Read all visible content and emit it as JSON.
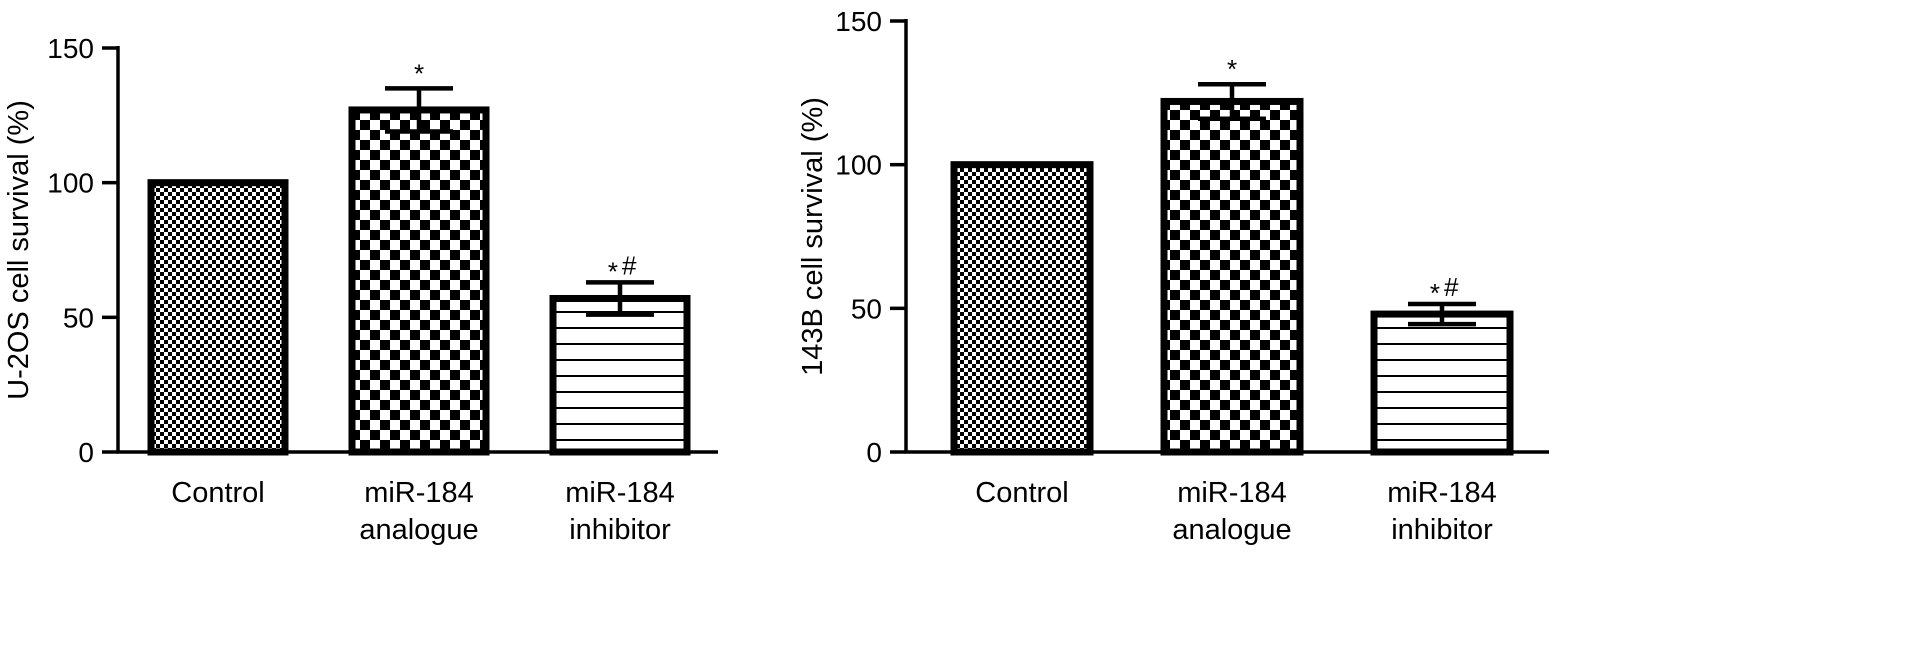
{
  "colors": {
    "ink": "#000000",
    "background": "#ffffff"
  },
  "chart_data": [
    {
      "type": "bar",
      "ylabel": "U-2OS cell survival (%)",
      "ylim": [
        0,
        150
      ],
      "yticks": [
        0,
        50,
        100,
        150
      ],
      "categories": [
        [
          "Control"
        ],
        [
          "miR-184",
          "analogue"
        ],
        [
          "miR-184",
          "inhibitor"
        ]
      ],
      "values": [
        100,
        127,
        57
      ],
      "errors": [
        0,
        8,
        6
      ],
      "patterns": [
        "fine-checker",
        "coarse-checker",
        "horizontal-lines"
      ],
      "annotations": [
        {
          "star": "",
          "hash": ""
        },
        {
          "star": "*",
          "hash": ""
        },
        {
          "star": "*",
          "hash": "#"
        }
      ],
      "grid": false,
      "legend": "none"
    },
    {
      "type": "bar",
      "ylabel": "143B cell survival (%)",
      "ylim": [
        0,
        150
      ],
      "yticks": [
        0,
        50,
        100,
        150
      ],
      "categories": [
        [
          "Control"
        ],
        [
          "miR-184",
          "analogue"
        ],
        [
          "miR-184",
          "inhibitor"
        ]
      ],
      "values": [
        100,
        122,
        48
      ],
      "errors": [
        0,
        6,
        3.5
      ],
      "patterns": [
        "fine-checker",
        "coarse-checker",
        "horizontal-lines"
      ],
      "annotations": [
        {
          "star": "",
          "hash": ""
        },
        {
          "star": "*",
          "hash": ""
        },
        {
          "star": "*",
          "hash": "#"
        }
      ],
      "grid": false,
      "legend": "none"
    }
  ]
}
